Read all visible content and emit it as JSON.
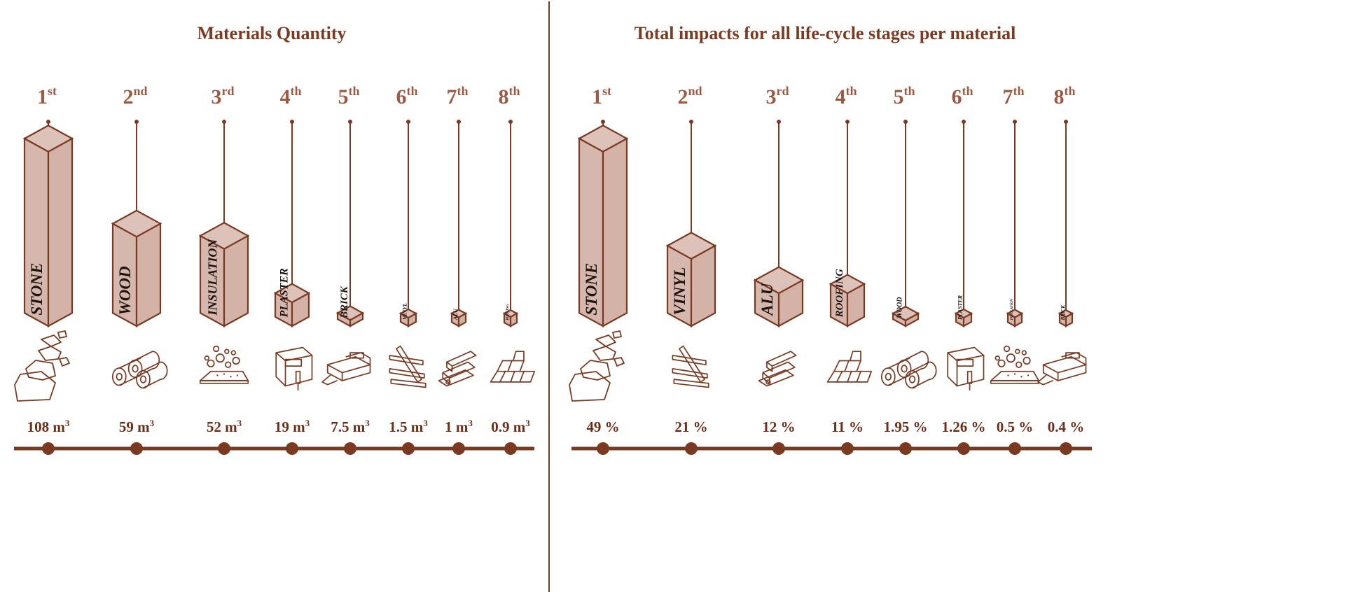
{
  "chart_data": [
    {
      "type": "bar",
      "title": "Materials Quantity",
      "categories": [
        "STONE",
        "WOOD",
        "INSULATION",
        "PLASTER",
        "BRICK",
        "VINYL",
        "ALU",
        "ROOFING"
      ],
      "ranks": [
        {
          "n": "1",
          "s": "st"
        },
        {
          "n": "2",
          "s": "nd"
        },
        {
          "n": "3",
          "s": "rd"
        },
        {
          "n": "4",
          "s": "th"
        },
        {
          "n": "5",
          "s": "th"
        },
        {
          "n": "6",
          "s": "th"
        },
        {
          "n": "7",
          "s": "th"
        },
        {
          "n": "8",
          "s": "th"
        }
      ],
      "values": [
        108,
        59,
        52,
        19,
        7.5,
        1.5,
        1,
        0.9
      ],
      "value_labels": [
        {
          "num": "108 m",
          "sup": "3"
        },
        {
          "num": "59 m",
          "sup": "3"
        },
        {
          "num": "52 m",
          "sup": "3"
        },
        {
          "num": "19 m",
          "sup": "3"
        },
        {
          "num": "7.5 m",
          "sup": "3"
        },
        {
          "num": "1.5 m",
          "sup": "3"
        },
        {
          "num": "1 m",
          "sup": "3"
        },
        {
          "num": "0.9 m",
          "sup": "3"
        }
      ],
      "icons": [
        "stone-icon",
        "wood-logs-icon",
        "insulation-icon",
        "plaster-icon",
        "brick-icon",
        "vinyl-icon",
        "alu-profile-icon",
        "roofing-icon"
      ]
    },
    {
      "type": "bar",
      "title": "Total impacts for all life-cycle stages per material",
      "categories": [
        "STONE",
        "VINYL",
        "ALU",
        "ROOFING",
        "WOOD",
        "PLASTER",
        "INSULATION",
        "BRICK"
      ],
      "ranks": [
        {
          "n": "1",
          "s": "st"
        },
        {
          "n": "2",
          "s": "nd"
        },
        {
          "n": "3",
          "s": "rd"
        },
        {
          "n": "4",
          "s": "th"
        },
        {
          "n": "5",
          "s": "th"
        },
        {
          "n": "6",
          "s": "th"
        },
        {
          "n": "7",
          "s": "th"
        },
        {
          "n": "8",
          "s": "th"
        }
      ],
      "values": [
        49,
        21,
        12,
        11,
        1.95,
        1.26,
        0.5,
        0.4
      ],
      "value_labels": [
        {
          "num": "49 %",
          "sup": ""
        },
        {
          "num": "21 %",
          "sup": ""
        },
        {
          "num": "12 %",
          "sup": ""
        },
        {
          "num": "11 %",
          "sup": ""
        },
        {
          "num": "1.95 %",
          "sup": ""
        },
        {
          "num": "1.26 %",
          "sup": ""
        },
        {
          "num": "0.5 %",
          "sup": ""
        },
        {
          "num": "0.4 %",
          "sup": ""
        }
      ],
      "icons": [
        "stone-icon",
        "vinyl-icon",
        "alu-profile-icon",
        "roofing-icon",
        "wood-logs-icon",
        "plaster-icon",
        "insulation-icon",
        "brick-icon"
      ]
    }
  ],
  "colors": {
    "accent": "#7a3a22",
    "box_fill": "#d6b7ad",
    "text_dark": "#1e140f"
  }
}
